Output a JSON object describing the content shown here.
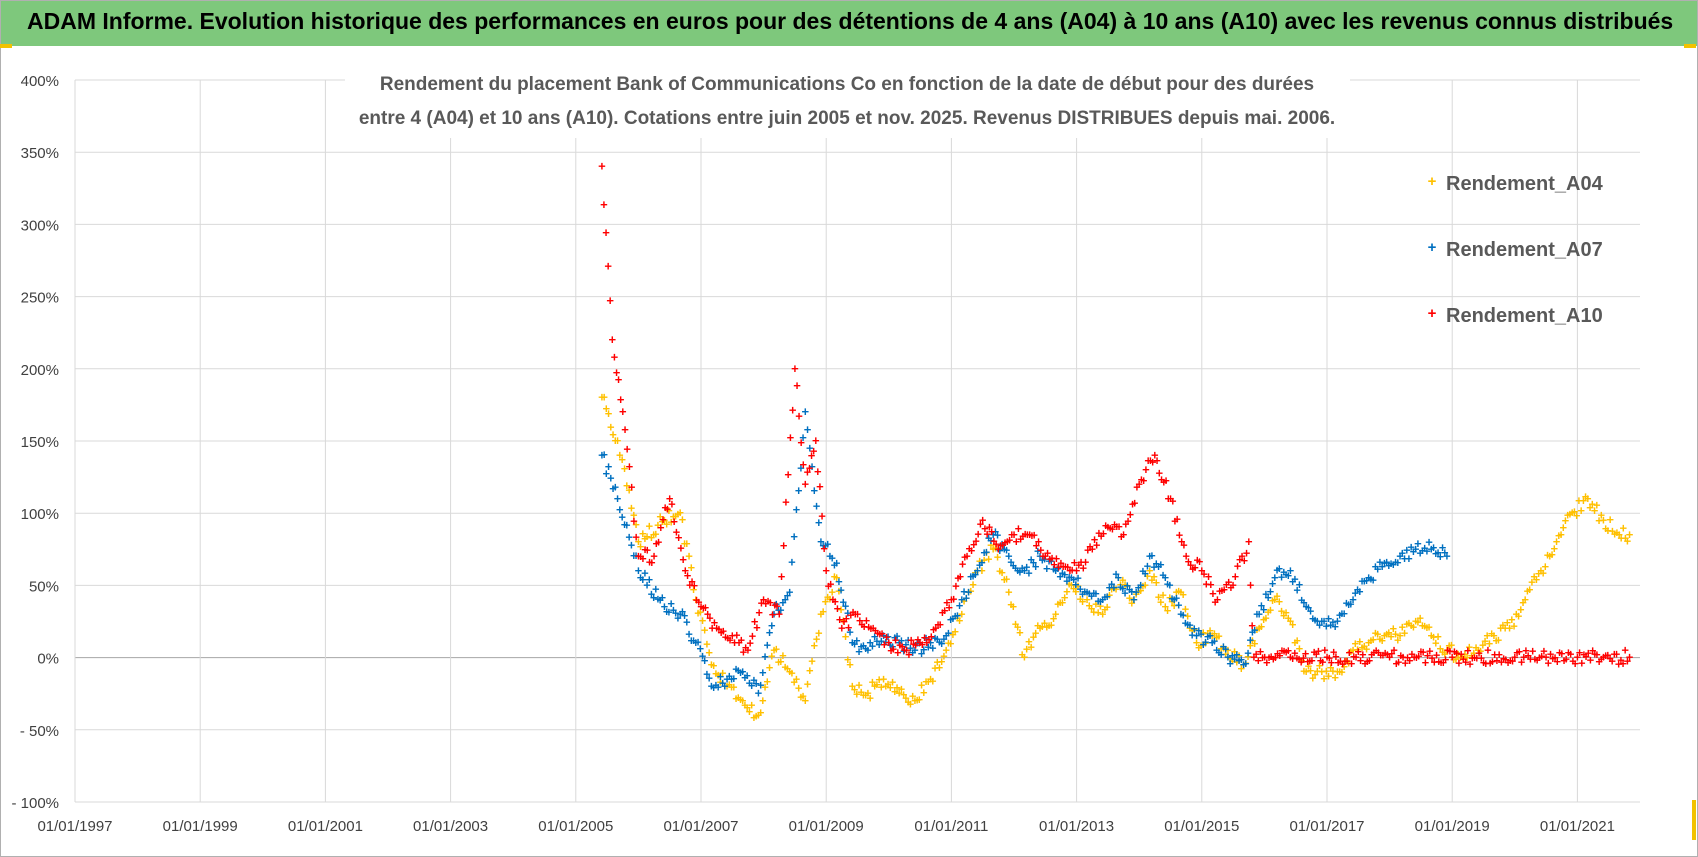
{
  "banner": {
    "title": "ADAM Informe. Evolution historique des performances en euros pour des détentions de 4 ans (A04) à 10 ans (A10) avec les revenus connus distribués"
  },
  "colors": {
    "banner_bg": "#7ec87c",
    "A04": "#ffc000",
    "A07": "#0070c0",
    "A10": "#ff0000",
    "grid": "#d9d9d9"
  },
  "chart_data": {
    "type": "scatter",
    "title_line1": "Rendement du placement Bank of Communications Co en fonction de la date de début pour des durées",
    "title_line2": "entre 4 (A04) et 10 ans (A10). Cotations entre juin 2005 et nov. 2025. Revenus DISTRIBUES depuis mai. 2006.",
    "xlabel": "",
    "ylabel": "",
    "x_range": [
      "01/01/1997",
      "01/01/2022"
    ],
    "ylim": [
      -100,
      400
    ],
    "y_ticks": [
      400,
      350,
      300,
      250,
      200,
      150,
      100,
      50,
      0,
      -50,
      -100
    ],
    "y_tick_labels": [
      "400%",
      "350%",
      "300%",
      "250%",
      "200%",
      "150%",
      "100%",
      "50%",
      "0%",
      "- 50%",
      "- 100%"
    ],
    "x_tick_labels": [
      "01/01/1997",
      "01/01/1999",
      "01/01/2001",
      "01/01/2003",
      "01/01/2005",
      "01/01/2007",
      "01/01/2009",
      "01/01/2011",
      "01/01/2013",
      "01/01/2015",
      "01/01/2017",
      "01/01/2019",
      "01/01/2021"
    ],
    "legend_position": "top-right",
    "grid": true,
    "series": [
      {
        "name": "Rendement_A04",
        "color": "#ffc000",
        "x": [
          "2005-06",
          "2005-09",
          "2006-01",
          "2006-06",
          "2006-09",
          "2006-12",
          "2007-03",
          "2007-06",
          "2007-09",
          "2007-12",
          "2008-03",
          "2008-06",
          "2008-09",
          "2008-12",
          "2009-03",
          "2009-06",
          "2009-09",
          "2009-12",
          "2010-03",
          "2010-06",
          "2010-09",
          "2010-12",
          "2011-03",
          "2011-06",
          "2011-09",
          "2011-12",
          "2012-03",
          "2012-06",
          "2012-09",
          "2012-12",
          "2013-03",
          "2013-06",
          "2013-09",
          "2013-12",
          "2014-03",
          "2014-06",
          "2014-09",
          "2014-12",
          "2015-03",
          "2015-06",
          "2015-09",
          "2015-12",
          "2016-03",
          "2016-06",
          "2016-09",
          "2016-12",
          "2017-03",
          "2017-06",
          "2017-09",
          "2017-12",
          "2018-03",
          "2018-06",
          "2018-09",
          "2018-12",
          "2019-03",
          "2019-06",
          "2019-09",
          "2019-12",
          "2020-03",
          "2020-06",
          "2020-09",
          "2020-12",
          "2021-03",
          "2021-06",
          "2021-09",
          "2021-11"
        ],
        "values": [
          180,
          150,
          80,
          95,
          100,
          40,
          -5,
          -20,
          -30,
          -40,
          5,
          -10,
          -30,
          30,
          55,
          -20,
          -25,
          -15,
          -25,
          -30,
          -15,
          5,
          30,
          60,
          75,
          45,
          0,
          20,
          30,
          50,
          40,
          30,
          55,
          40,
          60,
          35,
          45,
          10,
          15,
          5,
          -5,
          20,
          40,
          25,
          -10,
          -10,
          -10,
          5,
          10,
          15,
          15,
          25,
          15,
          5,
          0,
          5,
          15,
          20,
          40,
          60,
          80,
          100,
          110,
          95,
          85,
          85
        ]
      },
      {
        "name": "Rendement_A07",
        "color": "#0070c0",
        "x": [
          "2005-06",
          "2005-09",
          "2006-01",
          "2006-06",
          "2006-09",
          "2006-12",
          "2007-03",
          "2007-06",
          "2007-09",
          "2007-12",
          "2008-03",
          "2008-06",
          "2008-09",
          "2008-12",
          "2009-03",
          "2009-06",
          "2009-09",
          "2009-12",
          "2010-03",
          "2010-06",
          "2010-09",
          "2010-12",
          "2011-03",
          "2011-06",
          "2011-09",
          "2011-12",
          "2012-03",
          "2012-06",
          "2012-09",
          "2012-12",
          "2013-03",
          "2013-06",
          "2013-09",
          "2013-12",
          "2014-03",
          "2014-06",
          "2014-09",
          "2014-12",
          "2015-03",
          "2015-06",
          "2015-09",
          "2015-12",
          "2016-03",
          "2016-06",
          "2016-09",
          "2016-12",
          "2017-03",
          "2017-06",
          "2017-09",
          "2017-12",
          "2018-03",
          "2018-06",
          "2018-09",
          "2018-12"
        ],
        "values": [
          140,
          110,
          60,
          35,
          30,
          10,
          -20,
          -15,
          -10,
          -25,
          30,
          45,
          170,
          80,
          65,
          10,
          5,
          15,
          10,
          5,
          10,
          15,
          40,
          60,
          85,
          70,
          60,
          70,
          60,
          55,
          45,
          40,
          55,
          40,
          70,
          55,
          30,
          15,
          10,
          0,
          -5,
          30,
          55,
          60,
          35,
          25,
          25,
          40,
          55,
          65,
          70,
          75,
          75,
          70
        ]
      },
      {
        "name": "Rendement_A10",
        "color": "#ff0000",
        "x": [
          "2005-06",
          "2005-08",
          "2005-10",
          "2006-01",
          "2006-04",
          "2006-07",
          "2006-10",
          "2007-01",
          "2007-04",
          "2007-07",
          "2007-10",
          "2008-01",
          "2008-04",
          "2008-07",
          "2008-09",
          "2008-11",
          "2009-01",
          "2009-04",
          "2009-07",
          "2009-10",
          "2010-01",
          "2010-04",
          "2010-07",
          "2010-10",
          "2011-01",
          "2011-04",
          "2011-07",
          "2011-10",
          "2012-01",
          "2012-04",
          "2012-07",
          "2012-10",
          "2013-01",
          "2013-04",
          "2013-07",
          "2013-10",
          "2014-01",
          "2014-04",
          "2014-07",
          "2014-10",
          "2015-01",
          "2015-04",
          "2015-07",
          "2015-10",
          "2015-11",
          "2016-06",
          "2017-01",
          "2018-01",
          "2019-01",
          "2020-01",
          "2021-01",
          "2021-11"
        ],
        "values": [
          340,
          220,
          170,
          70,
          70,
          110,
          60,
          35,
          20,
          15,
          5,
          40,
          30,
          200,
          120,
          150,
          60,
          20,
          30,
          20,
          10,
          5,
          10,
          20,
          40,
          70,
          95,
          75,
          85,
          85,
          70,
          65,
          60,
          75,
          90,
          85,
          120,
          140,
          110,
          70,
          60,
          40,
          50,
          80,
          0,
          0,
          0,
          0,
          0,
          0,
          0,
          0
        ]
      }
    ]
  }
}
